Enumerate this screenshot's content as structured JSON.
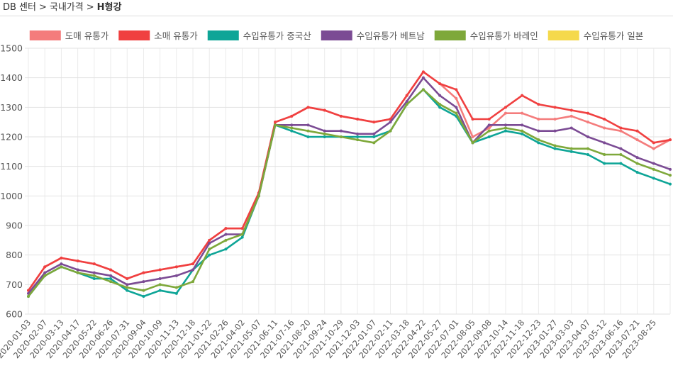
{
  "breadcrumb": {
    "items": [
      "DB 센터",
      "국내가격",
      "H형강"
    ],
    "separator": ">"
  },
  "chart_data": {
    "type": "line",
    "categories": [
      "2020-01-03",
      "2020-02-07",
      "2020-03-13",
      "2020-04-17",
      "2020-05-22",
      "2020-06-26",
      "2020-07-31",
      "2020-09-04",
      "2020-10-09",
      "2020-11-13",
      "2020-12-18",
      "2021-01-22",
      "2021-02-26",
      "2021-04-02",
      "2021-05-07",
      "2021-06-11",
      "2021-07-16",
      "2021-08-20",
      "2021-09-24",
      "2021-10-29",
      "2021-12-03",
      "2022-01-07",
      "2022-02-11",
      "2022-03-18",
      "2022-04-22",
      "2022-05-27",
      "2022-07-01",
      "2022-08-05",
      "2022-09-08",
      "2022-10-14",
      "2022-11-18",
      "2022-12-23",
      "2023-01-27",
      "2023-03-03",
      "2023-04-07",
      "2023-05-12",
      "2023-06-16",
      "2023-07-21",
      "2023-08-25",
      null
    ],
    "series": [
      {
        "name": "도매 유통가",
        "color": "#f47c7c",
        "values": [
          680,
          760,
          790,
          780,
          770,
          750,
          720,
          740,
          750,
          760,
          770,
          850,
          890,
          890,
          1010,
          1250,
          1270,
          1300,
          1290,
          1270,
          1260,
          1250,
          1260,
          1340,
          1420,
          1380,
          1330,
          1200,
          1230,
          1280,
          1280,
          1260,
          1260,
          1270,
          1250,
          1230,
          1220,
          1190,
          1160,
          1190
        ]
      },
      {
        "name": "소매 유통가",
        "color": "#f04040",
        "values": [
          680,
          760,
          790,
          780,
          770,
          750,
          720,
          740,
          750,
          760,
          770,
          850,
          890,
          890,
          1010,
          1250,
          1270,
          1300,
          1290,
          1270,
          1260,
          1250,
          1260,
          1340,
          1420,
          1380,
          1360,
          1260,
          1260,
          1300,
          1340,
          1310,
          1300,
          1290,
          1280,
          1260,
          1230,
          1220,
          1180,
          1190
        ]
      },
      {
        "name": "수입유통가 중국산",
        "color": "#0ea597",
        "values": [
          660,
          730,
          760,
          740,
          720,
          720,
          680,
          660,
          680,
          670,
          750,
          800,
          820,
          860,
          1000,
          1240,
          1220,
          1200,
          1200,
          1200,
          1200,
          1200,
          1220,
          1310,
          1360,
          1300,
          1270,
          1180,
          1200,
          1220,
          1210,
          1180,
          1160,
          1150,
          1140,
          1110,
          1110,
          1080,
          1060,
          1040
        ]
      },
      {
        "name": "수입유통가 베트남",
        "color": "#7b4b94",
        "values": [
          670,
          740,
          770,
          750,
          740,
          730,
          700,
          710,
          720,
          730,
          750,
          840,
          870,
          870,
          1000,
          1240,
          1240,
          1240,
          1220,
          1220,
          1210,
          1210,
          1250,
          1320,
          1400,
          1340,
          1300,
          1180,
          1240,
          1240,
          1240,
          1220,
          1220,
          1230,
          1200,
          1180,
          1160,
          1130,
          1110,
          1090
        ]
      },
      {
        "name": "수입유통가 바레인",
        "color": "#7ea83a",
        "values": [
          660,
          730,
          760,
          740,
          730,
          710,
          690,
          680,
          700,
          690,
          710,
          820,
          850,
          870,
          1000,
          1240,
          1230,
          1220,
          1210,
          1200,
          1190,
          1180,
          1220,
          1310,
          1360,
          1310,
          1280,
          1180,
          1220,
          1230,
          1220,
          1190,
          1170,
          1160,
          1160,
          1140,
          1140,
          1110,
          1090,
          1070
        ]
      },
      {
        "name": "수입유통가 일본",
        "color": "#f5d94c",
        "values": [
          null,
          null,
          null,
          null,
          null,
          null,
          null,
          null,
          null,
          null,
          null,
          null,
          null,
          null,
          null,
          null,
          null,
          null,
          null,
          null,
          null,
          null,
          null,
          null,
          null,
          null,
          null,
          null,
          null,
          null,
          null,
          null,
          null,
          null,
          null,
          null,
          null,
          null,
          null,
          null
        ]
      }
    ],
    "ylim": [
      600,
      1500
    ],
    "yticks": [
      600,
      700,
      800,
      900,
      1000,
      1100,
      1200,
      1300,
      1400,
      1500
    ],
    "grid": true
  }
}
